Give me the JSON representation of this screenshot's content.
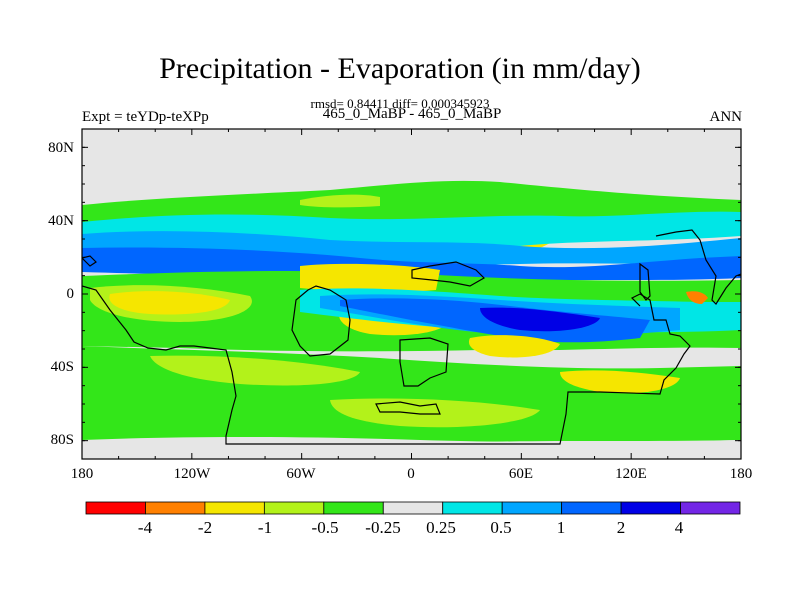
{
  "map": {
    "title": "Precipitation - Evaporation (in mm/day)",
    "stats": "rmsd= 0.84411 diff= 0.000345923",
    "left_label": "Expt = teYDp-teXPp",
    "center_label": "465_0_MaBP - 465_0_MaBP",
    "right_label": "ANN",
    "lat_ticks": [
      "80N",
      "40N",
      "0",
      "40S",
      "80S"
    ],
    "lon_ticks": [
      "180",
      "120W",
      "60W",
      "0",
      "60E",
      "120E",
      "180"
    ]
  },
  "colorbar": {
    "labels": [
      "-4",
      "-2",
      "-1",
      "-0.5",
      "-0.25",
      "0.25",
      "0.5",
      "1",
      "2",
      "4"
    ],
    "colors": [
      "#ff0000",
      "#ff8000",
      "#f5e600",
      "#b3f21a",
      "#33e619",
      "#e6e6e6",
      "#00e6e6",
      "#00a6ff",
      "#0066ff",
      "#0000e6",
      "#7326e6"
    ]
  },
  "colors": {
    "background_field": "#e6e6e6",
    "continent_outline": "#000000"
  }
}
